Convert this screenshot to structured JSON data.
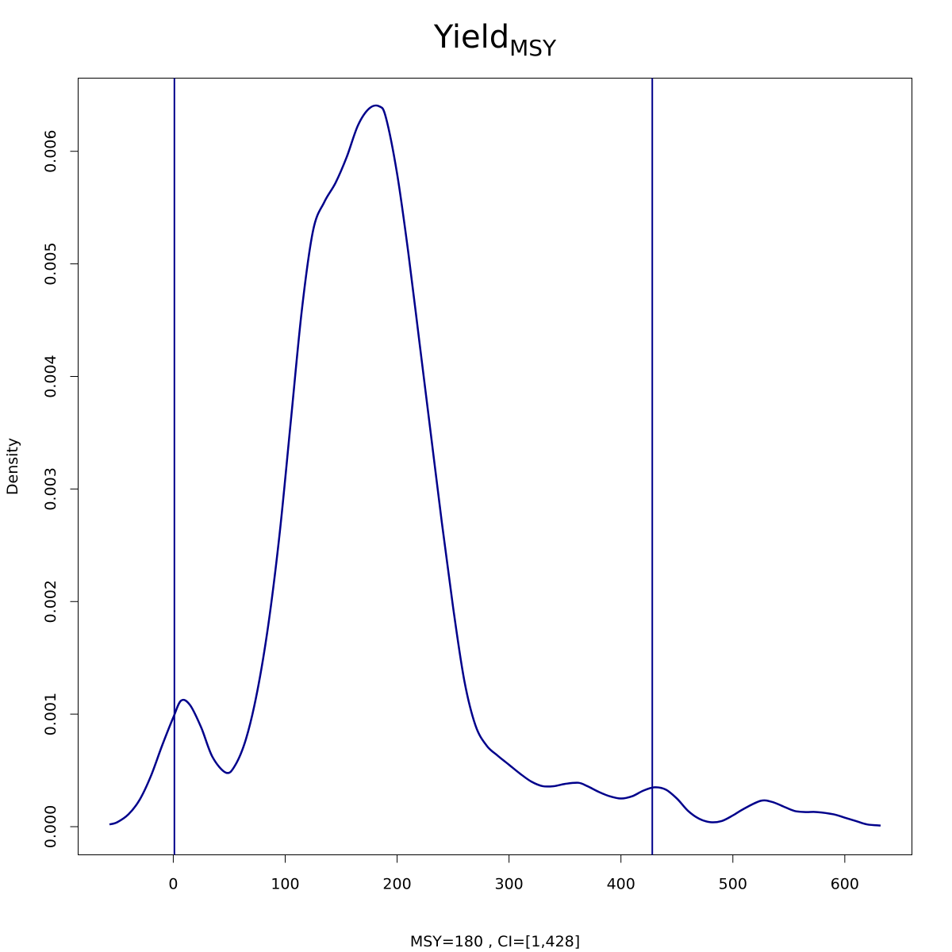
{
  "chart_data": {
    "type": "line",
    "title": "Yield",
    "title_subscript": "MSY",
    "xlabel": "MSY=180 , CI=[1,428]",
    "ylabel": "Density",
    "xlim": [
      -85,
      660
    ],
    "ylim": [
      -0.00025,
      0.00665
    ],
    "x_ticks": [
      0,
      100,
      200,
      300,
      400,
      500,
      600
    ],
    "x_tick_labels": [
      "0",
      "100",
      "200",
      "300",
      "400",
      "500",
      "600"
    ],
    "y_ticks": [
      0,
      0.001,
      0.002,
      0.003,
      0.004,
      0.005,
      0.006
    ],
    "y_tick_labels": [
      "0.000",
      "0.001",
      "0.002",
      "0.003",
      "0.004",
      "0.005",
      "0.006"
    ],
    "line_color": "#00008B",
    "vlines": [
      1,
      428
    ],
    "grid": false,
    "series": [
      {
        "x": [
          -57,
          -50,
          -40,
          -30,
          -20,
          -10,
          0,
          7,
          15,
          25,
          35,
          47,
          55,
          65,
          75,
          85,
          95,
          105,
          115,
          125,
          135,
          145,
          155,
          165,
          175,
          184,
          190,
          200,
          210,
          220,
          230,
          240,
          250,
          260,
          270,
          280,
          290,
          300,
          310,
          320,
          330,
          340,
          350,
          362,
          370,
          380,
          390,
          400,
          410,
          420,
          430,
          440,
          450,
          460,
          470,
          480,
          490,
          500,
          510,
          525,
          535,
          545,
          555,
          565,
          575,
          590,
          600,
          610,
          620,
          632
        ],
        "y": [
          2e-05,
          4e-05,
          0.00011,
          0.00024,
          0.00045,
          0.00072,
          0.00097,
          0.00112,
          0.00108,
          0.00088,
          0.00062,
          0.00048,
          0.00054,
          0.00078,
          0.0012,
          0.0018,
          0.0026,
          0.0036,
          0.0046,
          0.0053,
          0.00555,
          0.00572,
          0.00595,
          0.00623,
          0.00638,
          0.0064,
          0.0063,
          0.0058,
          0.0051,
          0.0043,
          0.0035,
          0.0027,
          0.00195,
          0.0013,
          0.0009,
          0.00072,
          0.00063,
          0.00055,
          0.00047,
          0.0004,
          0.00036,
          0.00036,
          0.00038,
          0.00039,
          0.00036,
          0.00031,
          0.00027,
          0.00025,
          0.00027,
          0.00032,
          0.00035,
          0.00033,
          0.00025,
          0.00014,
          7e-05,
          4e-05,
          5e-05,
          0.0001,
          0.00016,
          0.00023,
          0.00022,
          0.00018,
          0.00014,
          0.00013,
          0.00013,
          0.00011,
          8e-05,
          5e-05,
          2e-05,
          1e-05
        ]
      }
    ]
  }
}
